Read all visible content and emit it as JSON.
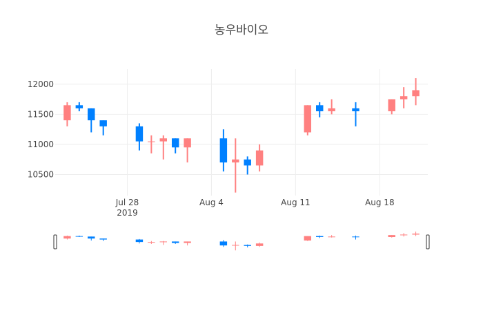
{
  "chart_data": {
    "type": "candlestick",
    "title": "농우바이오",
    "xlabel": "",
    "ylabel": "",
    "increasing_color": "#ff8080",
    "decreasing_color": "#0080ff",
    "grid": true,
    "rangeslider": true,
    "ylim": [
      10150,
      12250
    ],
    "xlim": [
      "2019-07-22",
      "2019-08-22"
    ],
    "y_ticks": [
      "10500",
      "11000",
      "11500",
      "12000"
    ],
    "x_ticks": [
      {
        "date": "2019-07-28",
        "label": "Jul 28",
        "sublabel": "2019"
      },
      {
        "date": "2019-08-04",
        "label": "Aug 4",
        "sublabel": ""
      },
      {
        "date": "2019-08-11",
        "label": "Aug 11",
        "sublabel": ""
      },
      {
        "date": "2019-08-18",
        "label": "Aug 18",
        "sublabel": ""
      }
    ],
    "candles": [
      {
        "date": "2019-07-23",
        "open": 11400,
        "high": 11700,
        "low": 11300,
        "close": 11650
      },
      {
        "date": "2019-07-24",
        "open": 11650,
        "high": 11700,
        "low": 11550,
        "close": 11600
      },
      {
        "date": "2019-07-25",
        "open": 11600,
        "high": 11600,
        "low": 11200,
        "close": 11400
      },
      {
        "date": "2019-07-26",
        "open": 11400,
        "high": 11400,
        "low": 11150,
        "close": 11300
      },
      {
        "date": "2019-07-29",
        "open": 11300,
        "high": 11350,
        "low": 10900,
        "close": 11050
      },
      {
        "date": "2019-07-30",
        "open": 11050,
        "high": 11150,
        "low": 10850,
        "close": 11050
      },
      {
        "date": "2019-07-31",
        "open": 11050,
        "high": 11150,
        "low": 10750,
        "close": 11100
      },
      {
        "date": "2019-08-01",
        "open": 11100,
        "high": 11100,
        "low": 10850,
        "close": 10950
      },
      {
        "date": "2019-08-02",
        "open": 10950,
        "high": 11100,
        "low": 10700,
        "close": 11100
      },
      {
        "date": "2019-08-05",
        "open": 11100,
        "high": 11250,
        "low": 10550,
        "close": 10700
      },
      {
        "date": "2019-08-06",
        "open": 10700,
        "high": 11100,
        "low": 10200,
        "close": 10750
      },
      {
        "date": "2019-08-07",
        "open": 10750,
        "high": 10800,
        "low": 10500,
        "close": 10650
      },
      {
        "date": "2019-08-08",
        "open": 10650,
        "high": 11000,
        "low": 10550,
        "close": 10900
      },
      {
        "date": "2019-08-12",
        "open": 11200,
        "high": 11650,
        "low": 11150,
        "close": 11650
      },
      {
        "date": "2019-08-13",
        "open": 11650,
        "high": 11700,
        "low": 11450,
        "close": 11550
      },
      {
        "date": "2019-08-14",
        "open": 11550,
        "high": 11750,
        "low": 11500,
        "close": 11600
      },
      {
        "date": "2019-08-16",
        "open": 11600,
        "high": 11700,
        "low": 11300,
        "close": 11550
      },
      {
        "date": "2019-08-19",
        "open": 11550,
        "high": 11750,
        "low": 11500,
        "close": 11750
      },
      {
        "date": "2019-08-20",
        "open": 11750,
        "high": 11950,
        "low": 11600,
        "close": 11800
      },
      {
        "date": "2019-08-21",
        "open": 11800,
        "high": 12100,
        "low": 11650,
        "close": 11900
      }
    ]
  }
}
